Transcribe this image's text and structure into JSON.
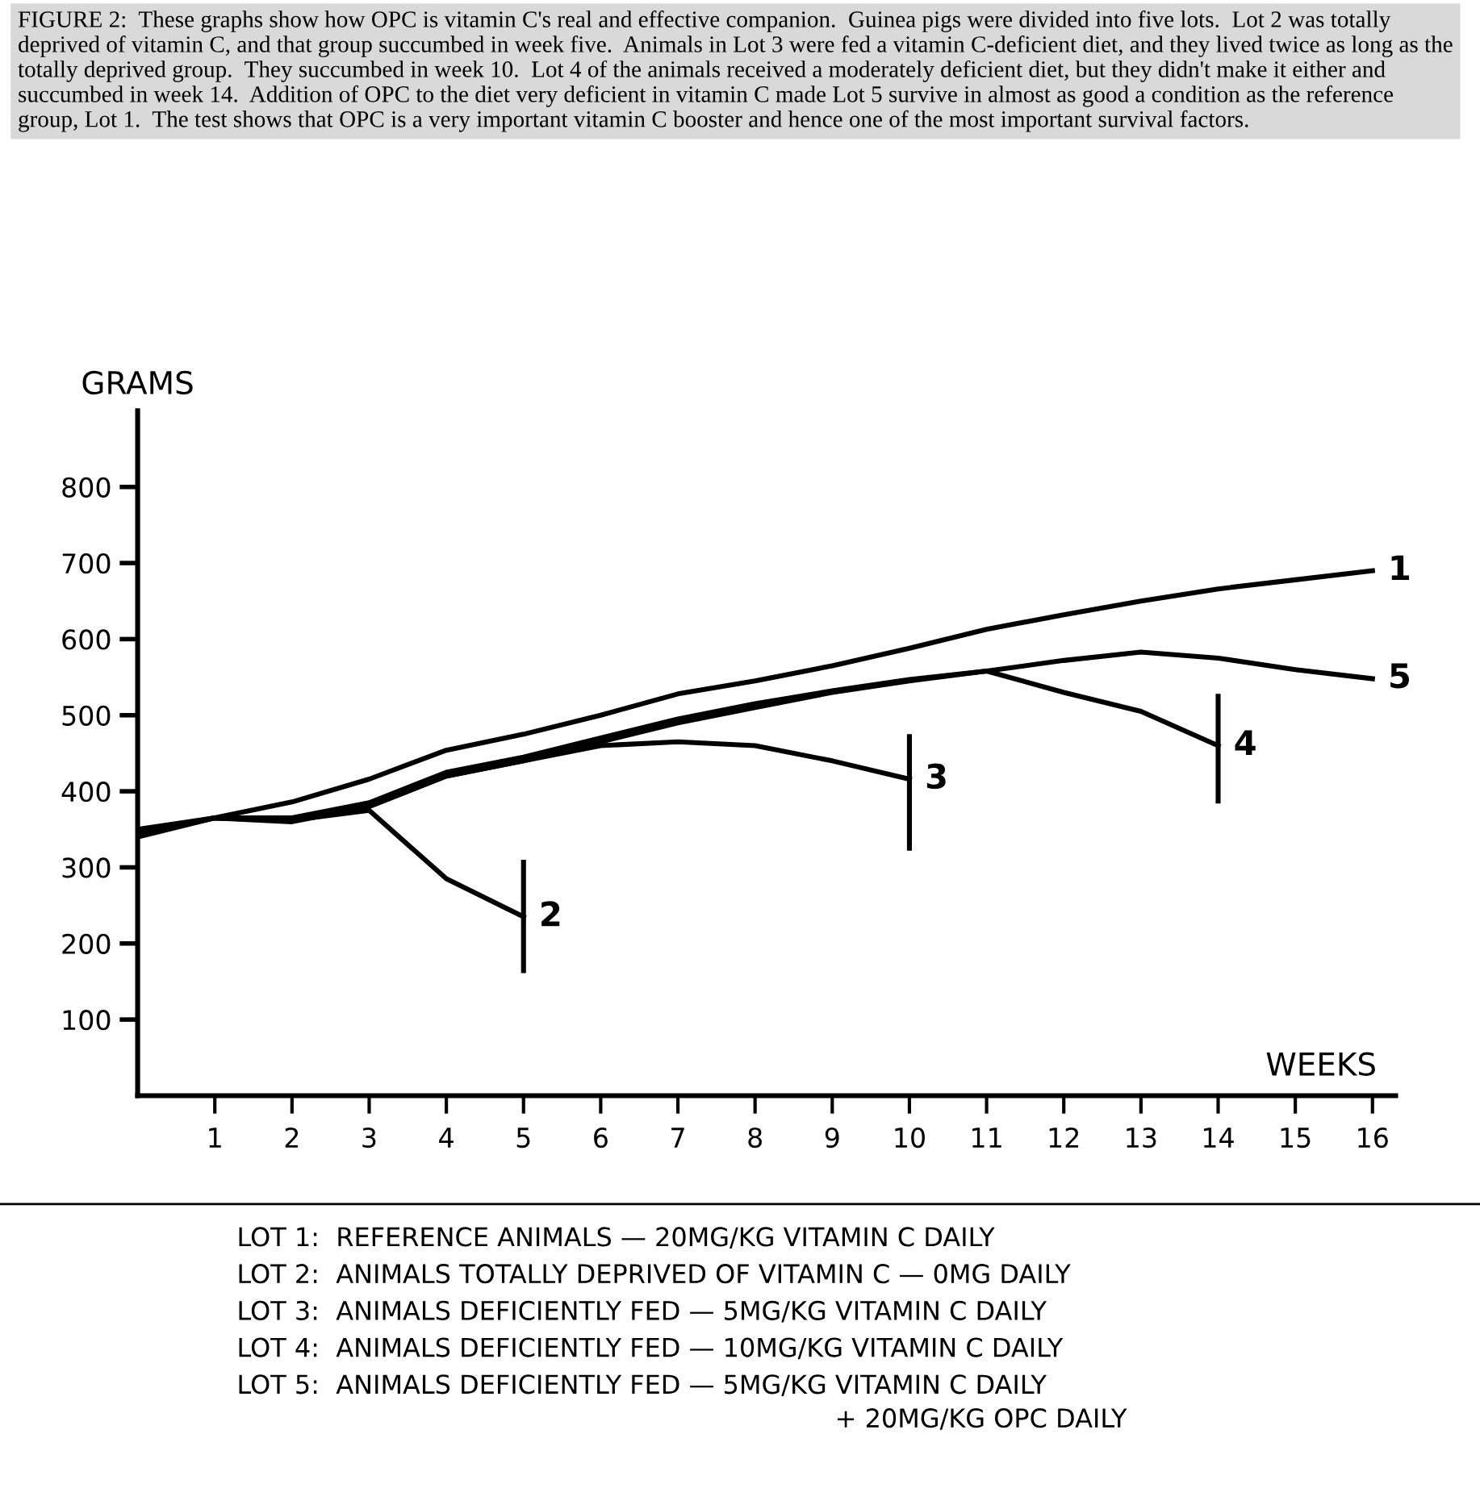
{
  "chart_data": {
    "type": "line",
    "title": "FIGURE 2:  These graphs show how OPC is vitamin C's real and effective companion.  Guinea pigs were divided into five lots.  Lot 2 was totally deprived of vitamin C, and that group succumbed in week five.  Animals in Lot 3 were fed a vitamin C-deficient diet, and they lived twice as long as the totally deprived group.  They succumbed in week 10.  Lot 4 of the animals received a moderately deficient diet, but they didn't make it either and succumbed in week 14.  Addition of OPC to the diet very deficient in vitamin C made Lot 5 survive in almost as good a condition as the reference group, Lot 1.  The test shows that OPC is a very important vitamin C booster and hence one of the most important survival factors.",
    "ylabel": "GRAMS",
    "xlabel": "WEEKS",
    "xlim": [
      0,
      16.3
    ],
    "xticks": [
      1,
      2,
      3,
      4,
      5,
      6,
      7,
      8,
      9,
      10,
      11,
      12,
      13,
      14,
      15,
      16
    ],
    "ylim": [
      0,
      900
    ],
    "yticks": [
      100,
      200,
      300,
      400,
      500,
      600,
      700,
      800
    ],
    "grid": false,
    "legend": false,
    "marker": "none",
    "line_style": "solid",
    "series": [
      {
        "name": "1",
        "color": "#000000",
        "x": [
          0,
          1,
          2,
          3,
          4,
          5,
          6,
          7,
          8,
          9,
          10,
          11,
          12,
          13,
          14,
          15,
          16
        ],
        "values": [
          345,
          365,
          386,
          416,
          454,
          475,
          500,
          528,
          545,
          565,
          588,
          613,
          632,
          650,
          666,
          678,
          690
        ]
      },
      {
        "name": "2",
        "color": "#000000",
        "x": [
          0,
          1,
          2,
          3,
          4,
          5
        ],
        "values": [
          345,
          365,
          362,
          375,
          285,
          235
        ],
        "errors": [
          null,
          null,
          null,
          null,
          null,
          [
            161,
            310
          ]
        ]
      },
      {
        "name": "3",
        "color": "#000000",
        "x": [
          0,
          1,
          2,
          3,
          4,
          5,
          6,
          7,
          8,
          9,
          10
        ],
        "values": [
          345,
          365,
          362,
          380,
          420,
          440,
          460,
          465,
          460,
          440,
          416
        ],
        "errors": [
          null,
          null,
          null,
          null,
          null,
          null,
          null,
          null,
          null,
          null,
          [
            322,
            475
          ]
        ]
      },
      {
        "name": "4",
        "color": "#000000",
        "x": [
          0,
          1,
          2,
          3,
          4,
          5,
          6,
          7,
          8,
          9,
          10,
          11,
          12,
          13,
          14
        ],
        "values": [
          350,
          365,
          365,
          385,
          425,
          445,
          470,
          495,
          515,
          532,
          547,
          558,
          530,
          505,
          460
        ],
        "errors": [
          null,
          null,
          null,
          null,
          null,
          null,
          null,
          null,
          null,
          null,
          null,
          null,
          null,
          null,
          [
            384,
            528
          ]
        ]
      },
      {
        "name": "5",
        "color": "#000000",
        "x": [
          0,
          1,
          2,
          3,
          4,
          5,
          6,
          7,
          8,
          9,
          10,
          11,
          12,
          13,
          14,
          15,
          16
        ],
        "values": [
          340,
          365,
          360,
          380,
          420,
          440,
          465,
          490,
          510,
          530,
          545,
          558,
          572,
          583,
          575,
          560,
          548
        ]
      }
    ],
    "annotations": [
      "LOT 1:  REFERENCE ANIMALS — 20MG/KG VITAMIN C DAILY",
      "LOT 2:  ANIMALS TOTALLY DEPRIVED OF VITAMIN C — 0MG DAILY",
      "LOT 3:  ANIMALS DEFICIENTLY FED — 5MG/KG VITAMIN C DAILY",
      "LOT 4:  ANIMALS DEFICIENTLY FED — 10MG/KG VITAMIN C DAILY",
      "LOT 5:  ANIMALS DEFICIENTLY FED — 5MG/KG VITAMIN C DAILY\n                                                                         + 20MG/KG OPC DAILY"
    ]
  }
}
